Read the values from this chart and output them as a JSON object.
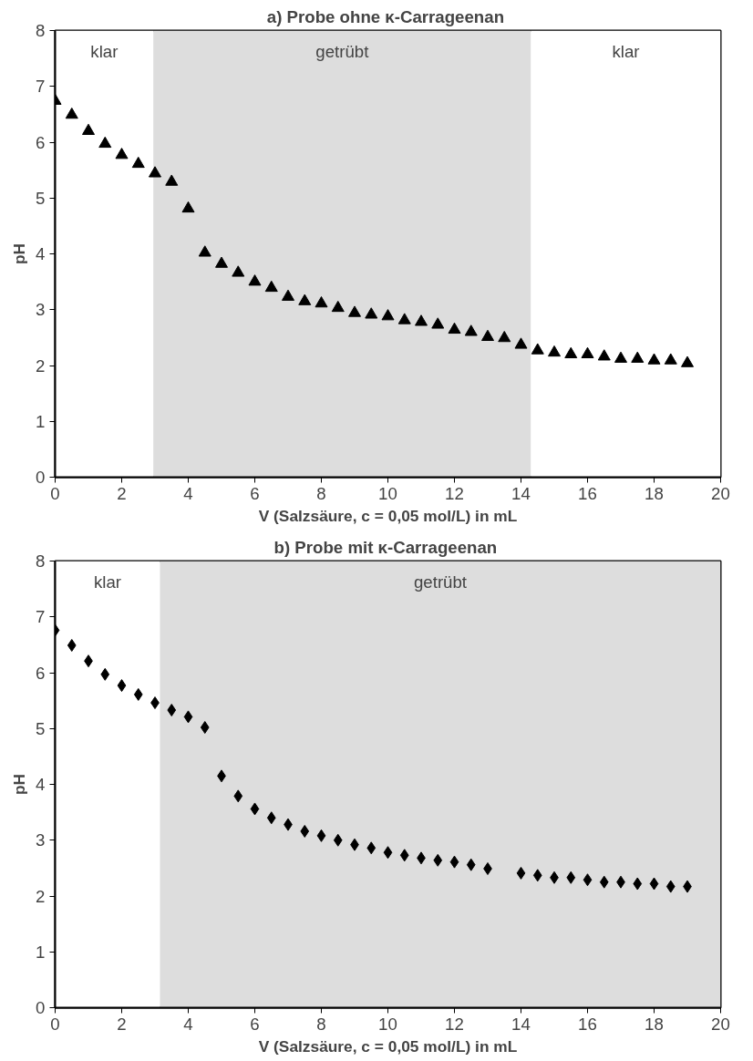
{
  "chart_data": [
    {
      "type": "scatter",
      "title": "a)  Probe ohne κ-Carrageenan",
      "xlabel": "V (Salzsäure, c = 0,05 mol/L) in mL",
      "ylabel": "pH",
      "x": [
        0,
        0.5,
        1,
        1.5,
        2,
        2.5,
        3,
        3.5,
        4,
        4.5,
        5,
        5.5,
        6,
        6.5,
        7,
        7.5,
        8,
        8.5,
        9,
        9.5,
        10,
        10.5,
        11,
        11.5,
        12,
        12.5,
        13,
        13.5,
        14,
        14.5,
        15,
        15.5,
        16,
        16.5,
        17,
        17.5,
        18,
        18.5,
        19
      ],
      "series": [
        {
          "color": "#000000",
          "values": [
            6.74,
            6.49,
            6.2,
            5.97,
            5.77,
            5.61,
            5.44,
            5.29,
            4.81,
            4.02,
            3.82,
            3.66,
            3.5,
            3.39,
            3.23,
            3.15,
            3.11,
            3.03,
            2.94,
            2.91,
            2.88,
            2.81,
            2.78,
            2.73,
            2.64,
            2.6,
            2.51,
            2.49,
            2.37,
            2.27,
            2.23,
            2.2,
            2.2,
            2.16,
            2.12,
            2.12,
            2.09,
            2.09,
            2.04
          ]
        }
      ],
      "marker": "triangle",
      "xlim": [
        0,
        20
      ],
      "ylim": [
        0,
        8
      ],
      "xticks": [
        0,
        2,
        4,
        6,
        8,
        10,
        12,
        14,
        16,
        18,
        20
      ],
      "yticks": [
        0,
        1,
        2,
        3,
        4,
        5,
        6,
        7,
        8
      ],
      "grid": false,
      "bands": [
        {
          "axis": "x",
          "from": 0,
          "to": 2.95,
          "label": "klar",
          "color": "#ffffff"
        },
        {
          "axis": "x",
          "from": 2.95,
          "to": 14.3,
          "label": "getrübt",
          "color": "#dddddd"
        },
        {
          "axis": "x",
          "from": 14.3,
          "to": 20,
          "label": "klar",
          "color": "#ffffff"
        }
      ]
    },
    {
      "type": "scatter",
      "title": "b)  Probe mit κ-Carrageenan",
      "xlabel": "V (Salzsäure, c = 0,05 mol/L) in mL",
      "ylabel": "pH",
      "x": [
        0,
        0.5,
        1,
        1.5,
        2,
        2.5,
        3,
        3.5,
        4,
        4.5,
        5,
        5.5,
        6,
        6.5,
        7,
        7.5,
        8,
        8.5,
        9,
        9.5,
        10,
        10.5,
        11,
        11.5,
        12,
        12.5,
        13,
        14,
        14.5,
        15,
        15.5,
        16,
        16.5,
        17,
        17.5,
        18,
        18.5,
        19
      ],
      "series": [
        {
          "color": "#000000",
          "values": [
            6.76,
            6.49,
            6.21,
            5.97,
            5.77,
            5.61,
            5.46,
            5.33,
            5.21,
            5.02,
            4.15,
            3.79,
            3.56,
            3.4,
            3.28,
            3.16,
            3.08,
            3.0,
            2.92,
            2.86,
            2.78,
            2.73,
            2.68,
            2.64,
            2.61,
            2.56,
            2.49,
            2.41,
            2.37,
            2.33,
            2.33,
            2.29,
            2.25,
            2.25,
            2.22,
            2.22,
            2.17,
            2.17
          ]
        }
      ],
      "marker": "diamond",
      "xlim": [
        0,
        20
      ],
      "ylim": [
        0,
        8
      ],
      "xticks": [
        0,
        2,
        4,
        6,
        8,
        10,
        12,
        14,
        16,
        18,
        20
      ],
      "yticks": [
        0,
        1,
        2,
        3,
        4,
        5,
        6,
        7,
        8
      ],
      "grid": false,
      "bands": [
        {
          "axis": "x",
          "from": 0,
          "to": 3.15,
          "label": "klar",
          "color": "#ffffff"
        },
        {
          "axis": "x",
          "from": 3.15,
          "to": 20,
          "label": "getrübt",
          "color": "#dddddd"
        }
      ]
    }
  ]
}
